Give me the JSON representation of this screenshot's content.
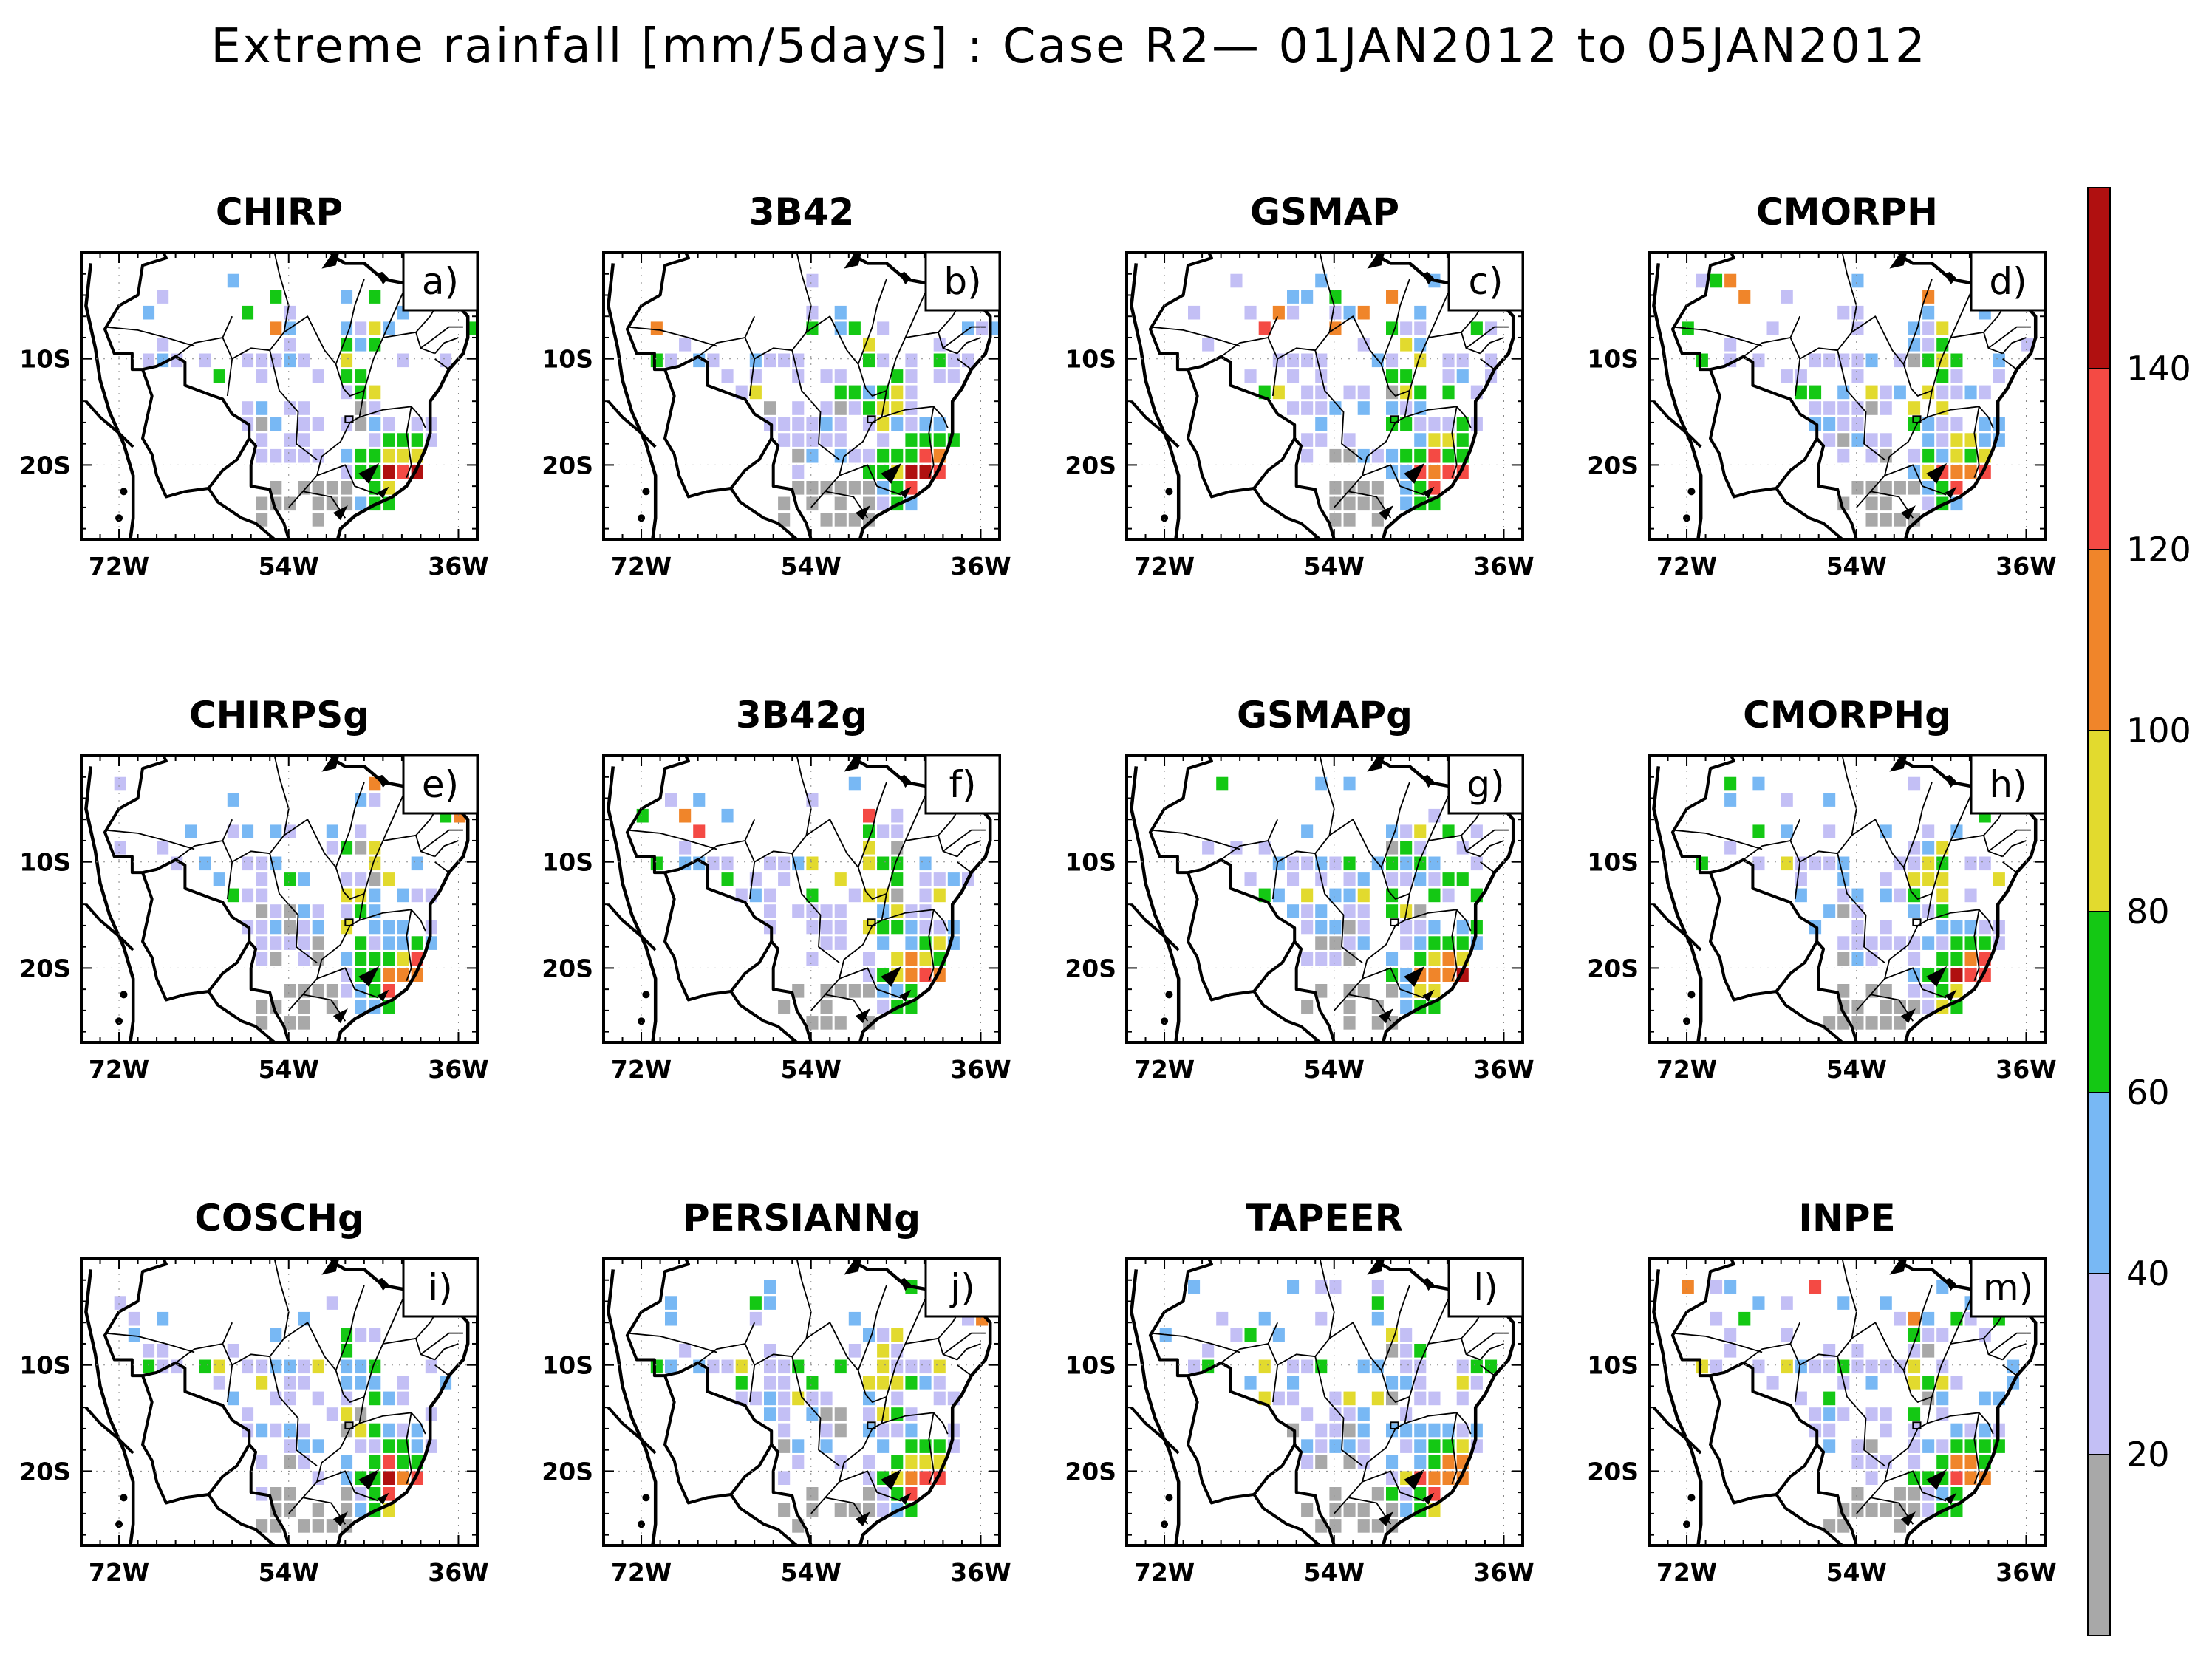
{
  "figure": {
    "title": "Extreme rainfall [mm/5days] : Case R2— 01JAN2012 to 05JAN2012"
  },
  "axes": {
    "lon_ticks": [
      "72W",
      "54W",
      "36W"
    ],
    "lat_ticks": [
      "10S",
      "20S"
    ],
    "lon_values": [
      -72,
      -54,
      -36
    ],
    "lat_values": [
      -10,
      -20
    ]
  },
  "colorbar": {
    "labels": [
      "20",
      "40",
      "60",
      "80",
      "100",
      "120",
      "140"
    ],
    "colors": [
      "#a8a8a8",
      "#c3bff5",
      "#78b8f4",
      "#14c814",
      "#e2da2e",
      "#f0852a",
      "#f44a44",
      "#b01010"
    ]
  },
  "panels": [
    {
      "title": "CHIRP",
      "letter": "a)"
    },
    {
      "title": "3B42",
      "letter": "b)"
    },
    {
      "title": "GSMAP",
      "letter": "c)"
    },
    {
      "title": "CMORPH",
      "letter": "d)"
    },
    {
      "title": "CHIRPSg",
      "letter": "e)"
    },
    {
      "title": "3B42g",
      "letter": "f)"
    },
    {
      "title": "GSMAPg",
      "letter": "g)"
    },
    {
      "title": "CMORPHg",
      "letter": "h)"
    },
    {
      "title": "COSCHg",
      "letter": "i)"
    },
    {
      "title": "PERSIANNg",
      "letter": "j)"
    },
    {
      "title": "TAPEER",
      "letter": "l)"
    },
    {
      "title": "INPE",
      "letter": "m)"
    }
  ]
}
